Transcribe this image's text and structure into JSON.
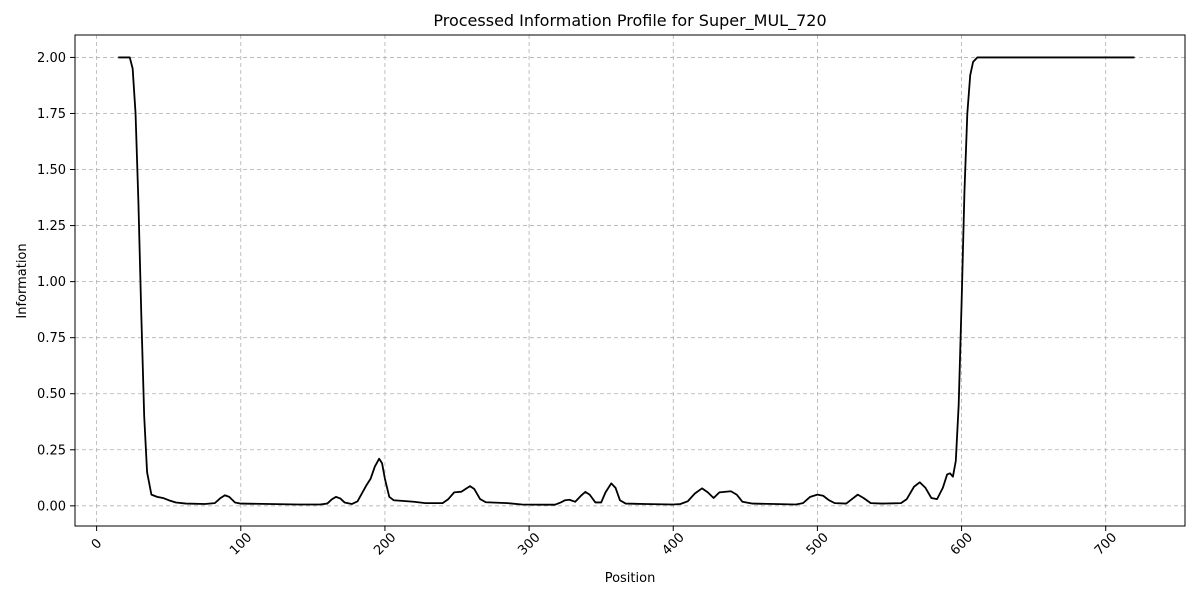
{
  "chart_data": {
    "type": "line",
    "title": "Processed Information Profile for Super_MUL_720",
    "xlabel": "Position",
    "ylabel": "Information",
    "xlim": [
      -15,
      755
    ],
    "ylim": [
      -0.09,
      2.1
    ],
    "x_ticks": [
      0,
      100,
      200,
      300,
      400,
      500,
      600,
      700
    ],
    "x_tick_labels": [
      "0",
      "100",
      "200",
      "300",
      "400",
      "500",
      "600",
      "700"
    ],
    "y_ticks": [
      0.0,
      0.25,
      0.5,
      0.75,
      1.0,
      1.25,
      1.5,
      1.75,
      2.0
    ],
    "y_tick_labels": [
      "0.00",
      "0.25",
      "0.50",
      "0.75",
      "1.00",
      "1.25",
      "1.50",
      "1.75",
      "2.00"
    ],
    "grid": true,
    "series": [
      {
        "color": "#000000",
        "points": [
          [
            15,
            2.0
          ],
          [
            23,
            2.0
          ],
          [
            25,
            1.95
          ],
          [
            27,
            1.75
          ],
          [
            29,
            1.35
          ],
          [
            31,
            0.85
          ],
          [
            33,
            0.4
          ],
          [
            35,
            0.15
          ],
          [
            38,
            0.05
          ],
          [
            42,
            0.04
          ],
          [
            46,
            0.035
          ],
          [
            50,
            0.025
          ],
          [
            55,
            0.015
          ],
          [
            62,
            0.01
          ],
          [
            75,
            0.008
          ],
          [
            82,
            0.012
          ],
          [
            86,
            0.035
          ],
          [
            89,
            0.047
          ],
          [
            92,
            0.04
          ],
          [
            96,
            0.015
          ],
          [
            100,
            0.01
          ],
          [
            120,
            0.008
          ],
          [
            140,
            0.006
          ],
          [
            155,
            0.006
          ],
          [
            160,
            0.01
          ],
          [
            163,
            0.028
          ],
          [
            166,
            0.04
          ],
          [
            169,
            0.033
          ],
          [
            172,
            0.015
          ],
          [
            177,
            0.008
          ],
          [
            181,
            0.02
          ],
          [
            184,
            0.055
          ],
          [
            187,
            0.09
          ],
          [
            190,
            0.12
          ],
          [
            193,
            0.175
          ],
          [
            196,
            0.21
          ],
          [
            198,
            0.19
          ],
          [
            200,
            0.12
          ],
          [
            203,
            0.04
          ],
          [
            206,
            0.025
          ],
          [
            212,
            0.022
          ],
          [
            220,
            0.018
          ],
          [
            228,
            0.012
          ],
          [
            240,
            0.012
          ],
          [
            244,
            0.03
          ],
          [
            248,
            0.06
          ],
          [
            253,
            0.063
          ],
          [
            259,
            0.088
          ],
          [
            262,
            0.075
          ],
          [
            266,
            0.03
          ],
          [
            270,
            0.016
          ],
          [
            285,
            0.012
          ],
          [
            295,
            0.006
          ],
          [
            310,
            0.005
          ],
          [
            318,
            0.005
          ],
          [
            322,
            0.015
          ],
          [
            325,
            0.025
          ],
          [
            328,
            0.027
          ],
          [
            332,
            0.018
          ],
          [
            336,
            0.045
          ],
          [
            339,
            0.062
          ],
          [
            342,
            0.05
          ],
          [
            346,
            0.015
          ],
          [
            350,
            0.015
          ],
          [
            353,
            0.06
          ],
          [
            357,
            0.1
          ],
          [
            360,
            0.08
          ],
          [
            363,
            0.025
          ],
          [
            367,
            0.01
          ],
          [
            380,
            0.008
          ],
          [
            400,
            0.006
          ],
          [
            405,
            0.008
          ],
          [
            410,
            0.02
          ],
          [
            415,
            0.055
          ],
          [
            420,
            0.078
          ],
          [
            424,
            0.06
          ],
          [
            428,
            0.035
          ],
          [
            432,
            0.06
          ],
          [
            440,
            0.065
          ],
          [
            444,
            0.05
          ],
          [
            448,
            0.018
          ],
          [
            455,
            0.01
          ],
          [
            470,
            0.008
          ],
          [
            485,
            0.006
          ],
          [
            490,
            0.012
          ],
          [
            495,
            0.04
          ],
          [
            500,
            0.05
          ],
          [
            504,
            0.045
          ],
          [
            508,
            0.025
          ],
          [
            512,
            0.012
          ],
          [
            520,
            0.01
          ],
          [
            524,
            0.03
          ],
          [
            528,
            0.05
          ],
          [
            532,
            0.035
          ],
          [
            537,
            0.012
          ],
          [
            545,
            0.01
          ],
          [
            558,
            0.012
          ],
          [
            562,
            0.03
          ],
          [
            567,
            0.085
          ],
          [
            571,
            0.105
          ],
          [
            575,
            0.08
          ],
          [
            579,
            0.035
          ],
          [
            583,
            0.03
          ],
          [
            587,
            0.08
          ],
          [
            590,
            0.14
          ],
          [
            592,
            0.145
          ],
          [
            594,
            0.13
          ],
          [
            596,
            0.2
          ],
          [
            598,
            0.45
          ],
          [
            600,
            0.9
          ],
          [
            602,
            1.4
          ],
          [
            604,
            1.75
          ],
          [
            606,
            1.92
          ],
          [
            608,
            1.98
          ],
          [
            611,
            2.0
          ],
          [
            650,
            2.0
          ],
          [
            700,
            2.0
          ],
          [
            720,
            2.0
          ]
        ]
      }
    ]
  }
}
